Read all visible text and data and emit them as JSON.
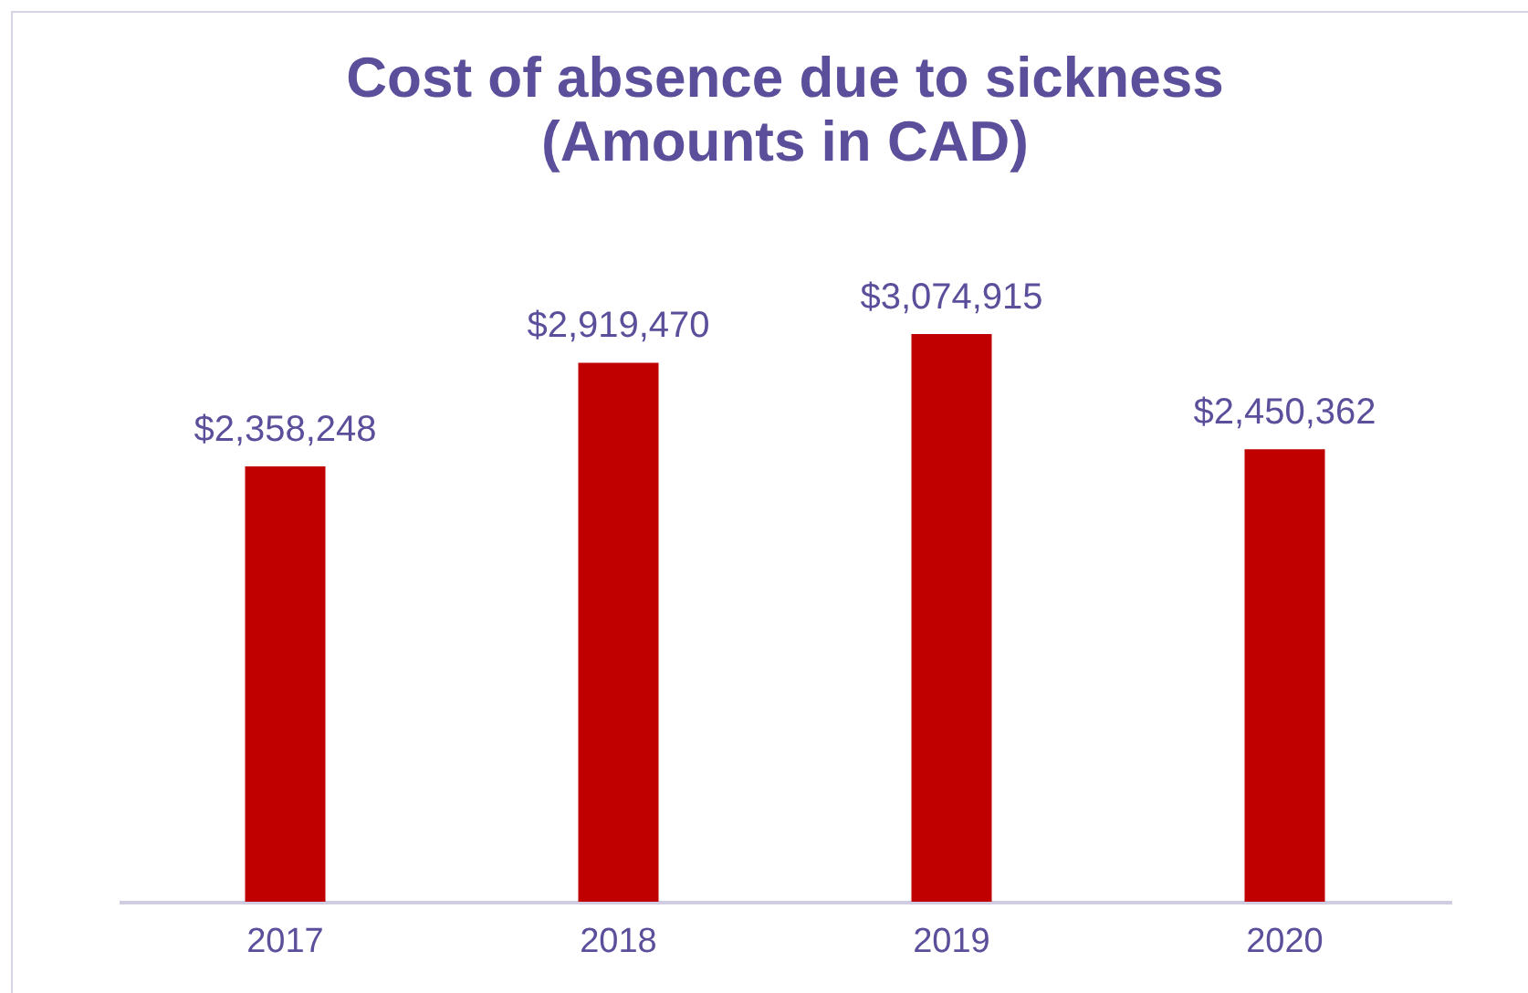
{
  "chart_data": {
    "type": "bar",
    "title": "Cost of absence due to sickness",
    "subtitle": "(Amounts in CAD)",
    "categories": [
      "2017",
      "2018",
      "2019",
      "2020"
    ],
    "values": [
      2358248,
      2919470,
      3074915,
      2450362
    ],
    "value_labels": [
      "$2,358,248",
      "$2,919,470",
      "$3,074,915",
      "$2,450,362"
    ],
    "color": "#c00000"
  }
}
